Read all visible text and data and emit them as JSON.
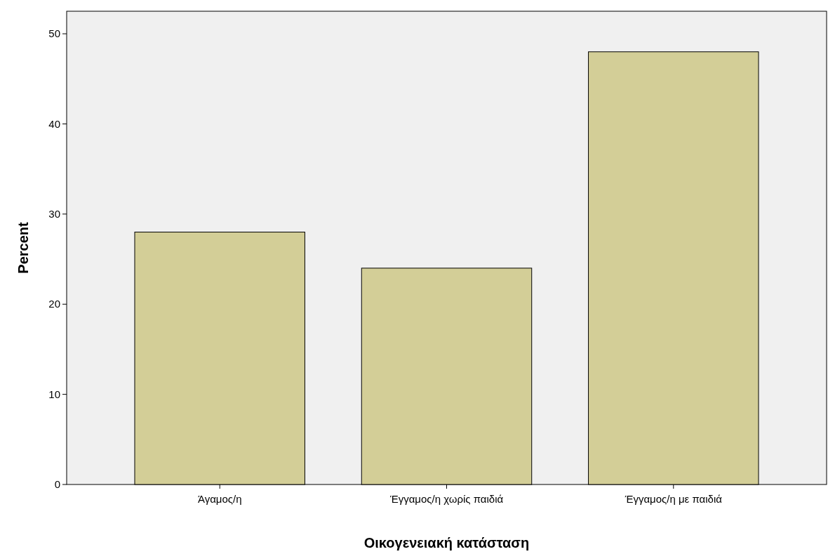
{
  "chart_data": {
    "type": "bar",
    "xlabel": "Οικογενειακή κατάσταση",
    "ylabel": "Percent",
    "categories": [
      "Άγαμος/η",
      "Έγγαμος/η χωρίς παιδιά",
      "Έγγαμος/η με παιδιά"
    ],
    "values": [
      28,
      24,
      48
    ],
    "color": "#d3ce97",
    "ylim": [
      0,
      52.5
    ],
    "yticks": [
      0,
      10,
      20,
      30,
      40,
      50
    ],
    "grid": false
  }
}
